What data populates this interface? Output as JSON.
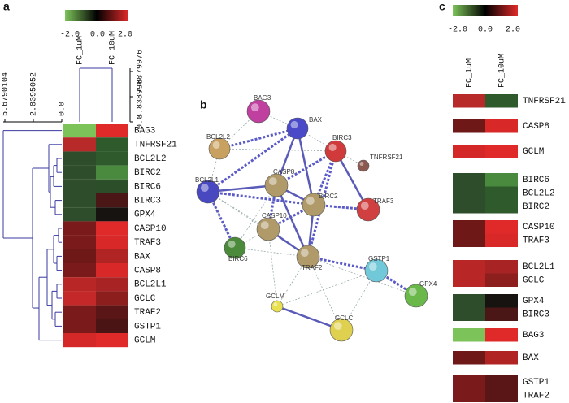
{
  "panel_a": {
    "label": "a",
    "colorbar_labels": [
      "-2.0",
      "0.0",
      "2.0"
    ],
    "columns": [
      "FC_1uM",
      "FC_10uM"
    ],
    "col_dendrogram_ticks": [
      "7.6779976",
      "3.8389988",
      "0.0"
    ],
    "row_dendrogram_ticks": [
      "5.6790104",
      "2.8395052",
      "0.0"
    ],
    "rows": [
      {
        "gene": "BAG3",
        "colors": [
          "#7cc35a",
          "#e02a2a"
        ]
      },
      {
        "gene": "TNFRSF21",
        "colors": [
          "#b82a2a",
          "#2f5a2c"
        ]
      },
      {
        "gene": "BCL2L2",
        "colors": [
          "#2e4d2a",
          "#2f5a2c"
        ]
      },
      {
        "gene": "BIRC2",
        "colors": [
          "#2e4d2a",
          "#4a8a3e"
        ]
      },
      {
        "gene": "BIRC6",
        "colors": [
          "#2e4d2a",
          "#2c4f29"
        ]
      },
      {
        "gene": "BIRC3",
        "colors": [
          "#2e4d2a",
          "#4a1616"
        ]
      },
      {
        "gene": "GPX4",
        "colors": [
          "#2e4d2a",
          "#161310"
        ]
      },
      {
        "gene": "CASP10",
        "colors": [
          "#7a1a1a",
          "#e02a2a"
        ]
      },
      {
        "gene": "TRAF3",
        "colors": [
          "#7a1a1a",
          "#d82828"
        ]
      },
      {
        "gene": "BAX",
        "colors": [
          "#6e1818",
          "#b02424"
        ]
      },
      {
        "gene": "CASP8",
        "colors": [
          "#7a1a1a",
          "#d82828"
        ]
      },
      {
        "gene": "BCL2L1",
        "colors": [
          "#b82626",
          "#a82424"
        ]
      },
      {
        "gene": "GCLC",
        "colors": [
          "#c42828",
          "#8c1e1e"
        ]
      },
      {
        "gene": "TRAF2",
        "colors": [
          "#7a1a1a",
          "#5a1616"
        ]
      },
      {
        "gene": "GSTP1",
        "colors": [
          "#7a1a1a",
          "#4a1414"
        ]
      },
      {
        "gene": "GCLM",
        "colors": [
          "#d42828",
          "#e02a2a"
        ]
      }
    ]
  },
  "panel_b": {
    "label": "b",
    "nodes": [
      "BAG3",
      "BAX",
      "BCL2L2",
      "BIRC3",
      "TNFRSF21",
      "BCL2L1",
      "CASP8",
      "BIRC2",
      "TRAF3",
      "CASP10",
      "BIRC6",
      "TRAF2",
      "GSTP1",
      "GPX4",
      "GCLM",
      "GCLC"
    ]
  },
  "panel_c": {
    "label": "c",
    "colorbar_labels": [
      "-2.0",
      "0.0",
      "2.0"
    ],
    "columns": [
      "FC_1uM",
      "FC_10uM"
    ],
    "groups": [
      [
        {
          "gene": "TNFRSF21",
          "colors": [
            "#b82a2a",
            "#2f5a2c"
          ]
        }
      ],
      [
        {
          "gene": "CASP8",
          "colors": [
            "#6e1818",
            "#d82828"
          ]
        }
      ],
      [
        {
          "gene": "GCLM",
          "colors": [
            "#d42828",
            "#e02a2a"
          ]
        }
      ],
      [
        {
          "gene": "BIRC6",
          "colors": [
            "#2e4d2a",
            "#4a8a3e"
          ]
        },
        {
          "gene": "BCL2L2",
          "colors": [
            "#2e4d2a",
            "#2f5a2c"
          ]
        },
        {
          "gene": "BIRC2",
          "colors": [
            "#2e4d2a",
            "#2f5a2c"
          ]
        }
      ],
      [
        {
          "gene": "CASP10",
          "colors": [
            "#6e1818",
            "#e02a2a"
          ]
        },
        {
          "gene": "TRAF3",
          "colors": [
            "#6e1818",
            "#d82828"
          ]
        }
      ],
      [
        {
          "gene": "BCL2L1",
          "colors": [
            "#b82626",
            "#a82424"
          ]
        },
        {
          "gene": "GCLC",
          "colors": [
            "#b82626",
            "#8c1e1e"
          ]
        }
      ],
      [
        {
          "gene": "GPX4",
          "colors": [
            "#2e4d2a",
            "#161310"
          ]
        },
        {
          "gene": "BIRC3",
          "colors": [
            "#2e4d2a",
            "#4a1616"
          ]
        }
      ],
      [
        {
          "gene": "BAG3",
          "colors": [
            "#7cc35a",
            "#e02a2a"
          ]
        }
      ],
      [
        {
          "gene": "BAX",
          "colors": [
            "#6e1818",
            "#b02424"
          ]
        }
      ],
      [
        {
          "gene": "GSTP1",
          "colors": [
            "#7a1a1a",
            "#5a1616"
          ]
        },
        {
          "gene": "TRAF2",
          "colors": [
            "#7a1a1a",
            "#5a1616"
          ]
        }
      ]
    ]
  }
}
